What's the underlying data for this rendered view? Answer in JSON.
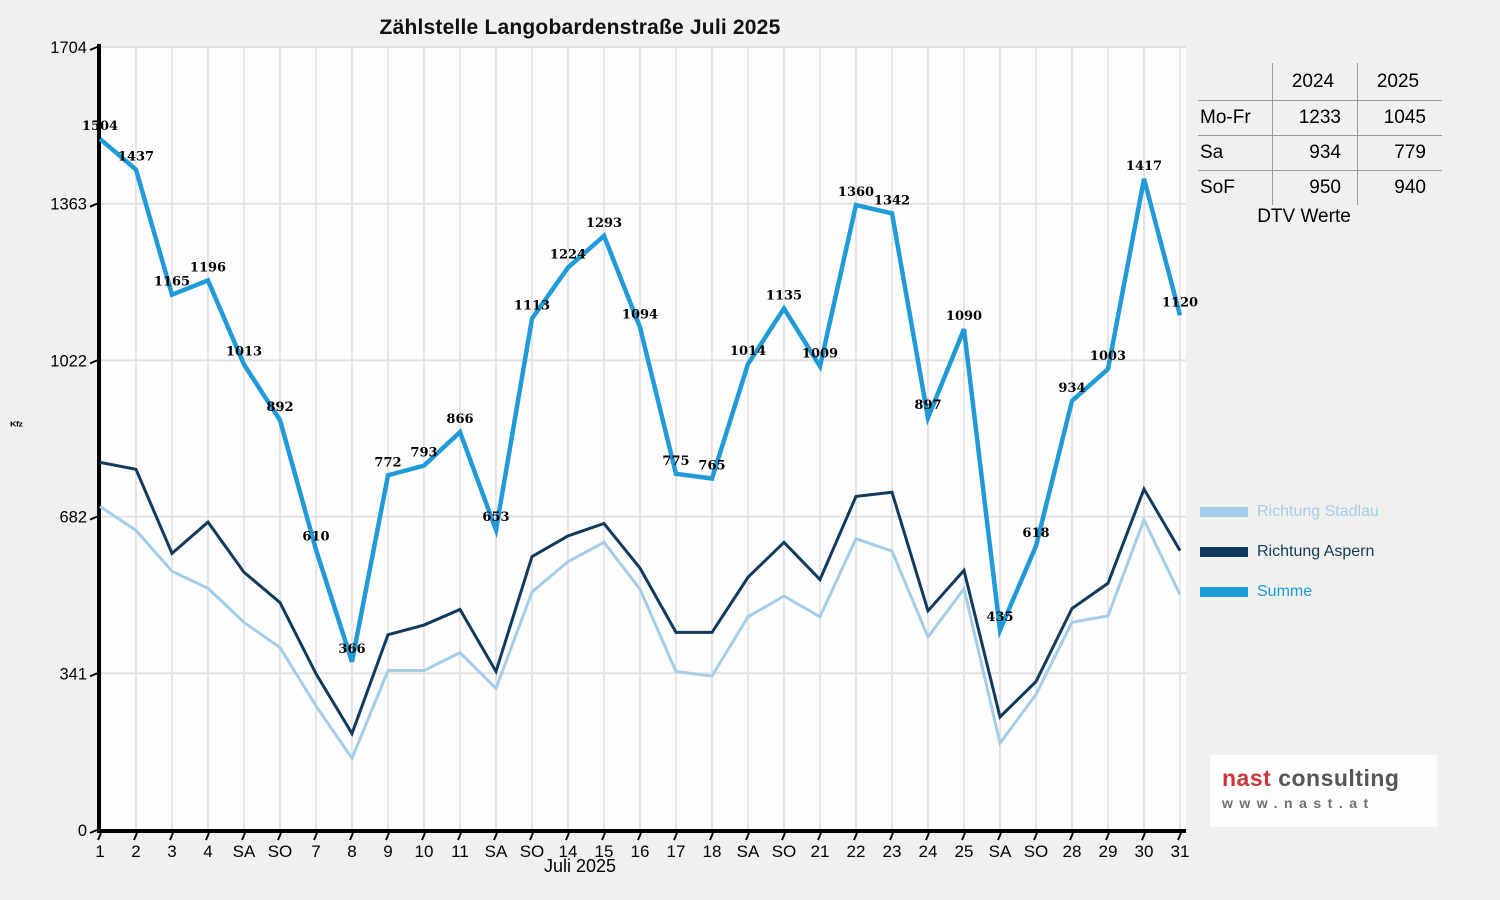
{
  "chart_data": {
    "type": "line",
    "title": "Zählstelle Langobardenstraße Juli 2025",
    "xlabel": "Juli 2025",
    "ylabel": "Kfz",
    "ylim": [
      0,
      1704
    ],
    "yticks": [
      0,
      341,
      682,
      1022,
      1363,
      1704
    ],
    "grid": true,
    "legend_position": "right",
    "categories": [
      "1",
      "2",
      "3",
      "4",
      "SA",
      "SO",
      "7",
      "8",
      "9",
      "10",
      "11",
      "SA",
      "SO",
      "14",
      "15",
      "16",
      "17",
      "18",
      "SA",
      "SO",
      "21",
      "22",
      "23",
      "24",
      "25",
      "SA",
      "SO",
      "28",
      "29",
      "30",
      "31"
    ],
    "sunday_label": "SO",
    "sunday_color": "#e8000b",
    "series": [
      {
        "name": "Richtung Stadlau",
        "color": "#a5cde9",
        "values": [
          704,
          652,
          563,
          526,
          452,
          397,
          270,
          156,
          347,
          347,
          386,
          308,
          518,
          584,
          626,
          524,
          345,
          335,
          464,
          509,
          464,
          634,
          607,
          420,
          525,
          189,
          295,
          452,
          466,
          675,
          512
        ]
      },
      {
        "name": "Richtung Aspern",
        "color": "#123a5d",
        "values": [
          800,
          785,
          602,
          670,
          561,
          495,
          340,
          210,
          425,
          446,
          480,
          345,
          595,
          640,
          667,
          570,
          430,
          430,
          550,
          626,
          545,
          726,
          735,
          477,
          565,
          246,
          323,
          482,
          537,
          742,
          608
        ]
      },
      {
        "name": "Summe",
        "color": "#219bd8",
        "show_labels": true,
        "values": [
          1504,
          1437,
          1165,
          1196,
          1013,
          892,
          610,
          366,
          772,
          793,
          866,
          653,
          1113,
          1224,
          1293,
          1094,
          775,
          765,
          1014,
          1135,
          1009,
          1360,
          1342,
          897,
          1090,
          435,
          618,
          934,
          1003,
          1417,
          1120
        ]
      }
    ]
  },
  "dtv_table": {
    "col_headers": [
      "2024",
      "2025"
    ],
    "rows": [
      {
        "label": "Mo-Fr",
        "values": [
          "1233",
          "1045"
        ]
      },
      {
        "label": "Sa",
        "values": [
          "934",
          "779"
        ]
      },
      {
        "label": "SoF",
        "values": [
          "950",
          "940"
        ]
      }
    ],
    "caption": "DTV Werte"
  },
  "logo": {
    "brand_bold": "nast",
    "brand_rest": "consulting",
    "url": "www.nast.at"
  }
}
